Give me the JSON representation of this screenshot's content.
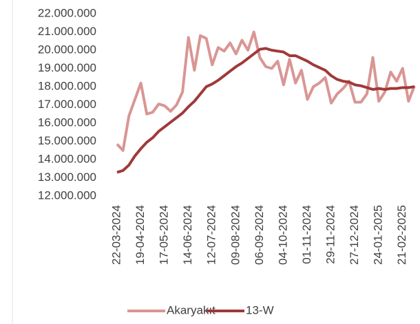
{
  "chart_data": {
    "type": "line",
    "categories": [
      "22-03-2024",
      null,
      null,
      null,
      "19-04-2024",
      null,
      null,
      null,
      "17-05-2024",
      null,
      null,
      null,
      "14-06-2024",
      null,
      null,
      null,
      "12-07-2024",
      null,
      null,
      null,
      "09-08-2024",
      null,
      null,
      null,
      "06-09-2024",
      null,
      null,
      null,
      "04-10-2024",
      null,
      null,
      null,
      "01-11-2024",
      null,
      null,
      null,
      "29-11-2024",
      null,
      null,
      null,
      "27-12-2024",
      null,
      null,
      null,
      "24-01-2025",
      null,
      null,
      null,
      "21-02-2025",
      null,
      null
    ],
    "series": [
      {
        "name": "Akaryakıt",
        "color": "#d99694",
        "values": [
          14850000,
          14500000,
          16400000,
          17300000,
          18200000,
          16500000,
          16600000,
          17050000,
          16950000,
          16650000,
          17000000,
          17700000,
          20700000,
          18900000,
          20800000,
          20650000,
          19200000,
          20150000,
          19950000,
          20400000,
          19800000,
          20550000,
          20000000,
          21000000,
          19600000,
          19100000,
          19000000,
          19400000,
          18100000,
          19500000,
          18200000,
          18900000,
          17300000,
          18000000,
          18200000,
          18500000,
          17100000,
          17600000,
          17900000,
          18300000,
          17150000,
          17150000,
          17600000,
          19600000,
          17200000,
          17700000,
          18800000,
          18300000,
          19000000,
          17200000,
          18050000
        ]
      },
      {
        "name": "13-W",
        "color": "#a0393a",
        "values": [
          13300000,
          13400000,
          13700000,
          14200000,
          14600000,
          14950000,
          15200000,
          15550000,
          15800000,
          16050000,
          16300000,
          16550000,
          16900000,
          17200000,
          17600000,
          18000000,
          18150000,
          18350000,
          18600000,
          18850000,
          19100000,
          19300000,
          19550000,
          19800000,
          20050000,
          20100000,
          20000000,
          19950000,
          19900000,
          19700000,
          19700000,
          19550000,
          19400000,
          19200000,
          19050000,
          18900000,
          18600000,
          18400000,
          18300000,
          18250000,
          18100000,
          18050000,
          17950000,
          17850000,
          17900000,
          17850000,
          17900000,
          17900000,
          17950000,
          17950000,
          18000000
        ]
      }
    ],
    "ylim": [
      12000000,
      22000000
    ],
    "yticks": [
      {
        "value": 12000000,
        "label": "12.000.000"
      },
      {
        "value": 13000000,
        "label": "13.000.000"
      },
      {
        "value": 14000000,
        "label": "14.000.000"
      },
      {
        "value": 15000000,
        "label": "15.000.000"
      },
      {
        "value": 16000000,
        "label": "16.000.000"
      },
      {
        "value": 17000000,
        "label": "17.000.000"
      },
      {
        "value": 18000000,
        "label": "18.000.000"
      },
      {
        "value": 19000000,
        "label": "19.000.000"
      },
      {
        "value": 20000000,
        "label": "20.000.000"
      },
      {
        "value": 21000000,
        "label": "21.000.000"
      },
      {
        "value": 22000000,
        "label": "22.000.000"
      }
    ],
    "grid": false,
    "legend": "bottom"
  }
}
